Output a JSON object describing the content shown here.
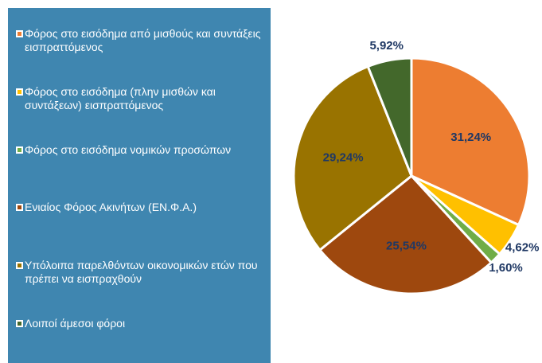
{
  "chart_data": {
    "type": "pie",
    "labels": [
      "Φόρος στο εισόδημα από μισθούς και συντάξεις εισπραττόμενος",
      "Φόρος στο εισόδημα (πλην μισθών και συντάξεων) εισπραττόμενος",
      "Φόρος στο εισόδημα νομικών προσώπων",
      "Ενιαίος Φόρος Ακινήτων (ΕΝ.Φ.Α.)",
      "Υπόλοιπα παρελθόντων οικονομικών ετών που πρέπει να εισπραχθούν",
      "Λοιποί άμεσοι φόροι"
    ],
    "values": [
      31.24,
      4.62,
      1.6,
      25.54,
      29.24,
      5.92
    ],
    "value_labels": [
      "31,24%",
      "4,62%",
      "1,60%",
      "25,54%",
      "29,24%",
      "5,92%"
    ],
    "colors": [
      "#ED7D31",
      "#FFC000",
      "#70AD47",
      "#9E480E",
      "#997300",
      "#43682B"
    ]
  }
}
